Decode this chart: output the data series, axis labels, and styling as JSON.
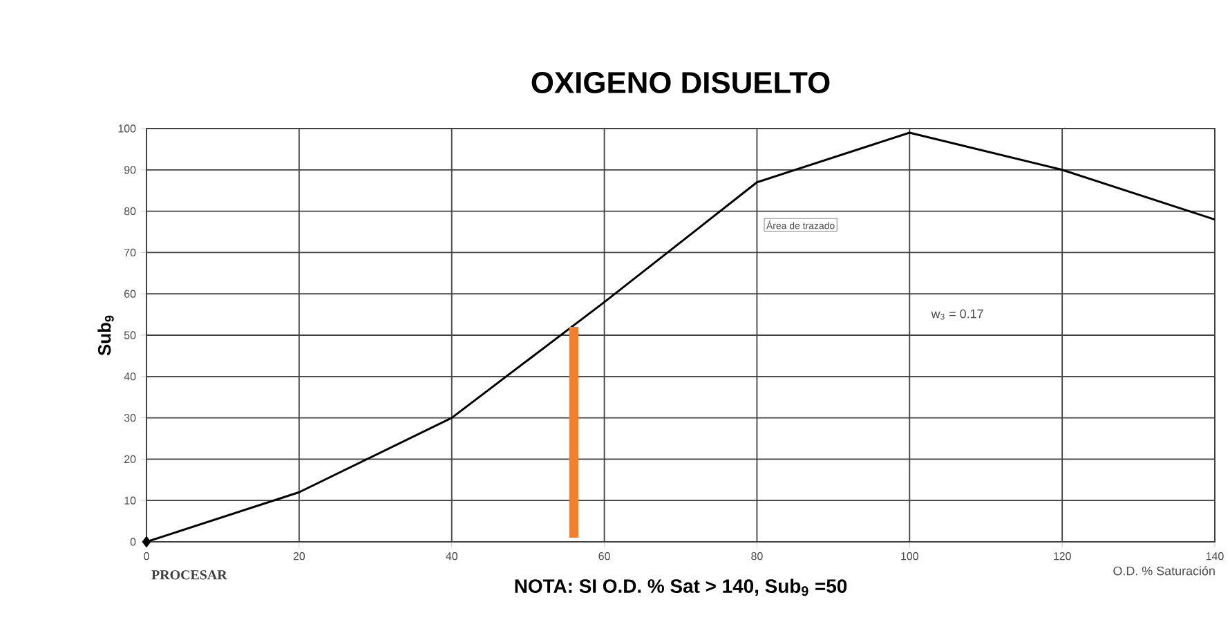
{
  "chart_data": {
    "type": "line",
    "title": "OXIGENO DISUELTO",
    "xlabel": "O.D. % Saturación",
    "ylabel": "Sub$_{9}$",
    "xlim": [
      0,
      140
    ],
    "ylim": [
      0,
      100
    ],
    "xticks": [
      0,
      20,
      40,
      60,
      80,
      100,
      120,
      140
    ],
    "yticks": [
      0,
      10,
      20,
      30,
      40,
      50,
      60,
      70,
      80,
      90,
      100
    ],
    "grid": true,
    "series": [
      {
        "color": "#000000",
        "x": [
          0,
          20,
          40,
          60,
          80,
          100,
          120,
          140
        ],
        "values": [
          0,
          12,
          30,
          58,
          87,
          99,
          90,
          78
        ]
      },
      {
        "type": "scatter",
        "marker": "diamond",
        "color": "#000000",
        "x": [
          0
        ],
        "values": [
          0
        ]
      },
      {
        "type": "bar",
        "color": "#f08030",
        "x": [
          56
        ],
        "base": [
          1
        ],
        "values": [
          51
        ]
      }
    ],
    "annotations": [
      "Área de trazado",
      "w$_{3}$ = 0.17",
      "PROCESAR",
      "NOTA: SI O.D. % Sat > 140, Sub$_{9}$ =50"
    ]
  }
}
